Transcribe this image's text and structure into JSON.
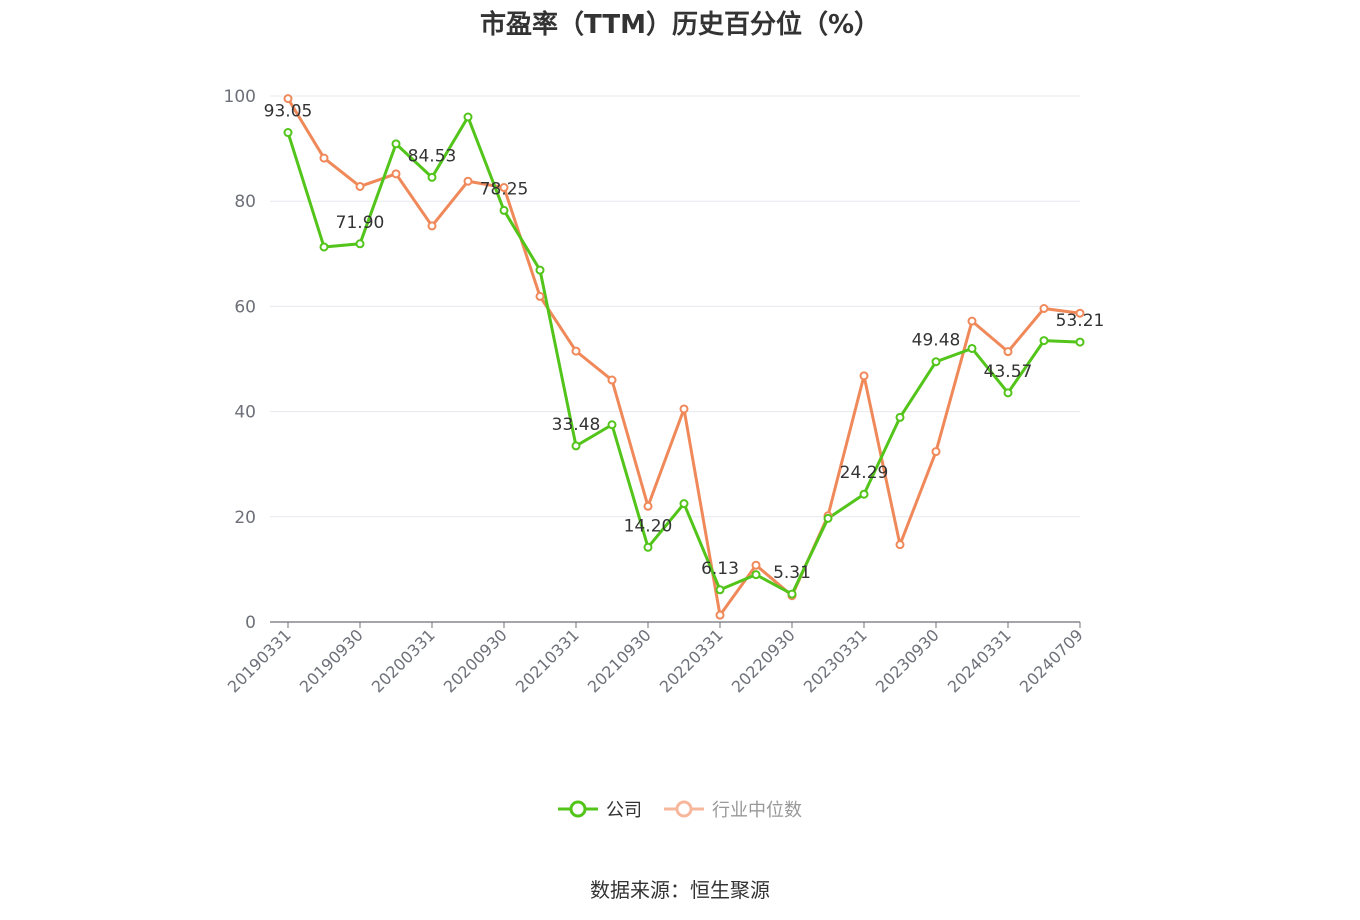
{
  "title": "市盈率（TTM）历史百分位（%）",
  "source": "数据来源：恒生聚源",
  "colors": {
    "company": "#52c41a",
    "industry": "#f0895a",
    "grid": "#e6e8ee",
    "axis": "#6e7079",
    "label": "#333333"
  },
  "legend": {
    "company": "公司",
    "industry": "行业中位数"
  },
  "chart_data": {
    "type": "line",
    "ylim": [
      0,
      100
    ],
    "yticks": [
      0,
      20,
      40,
      60,
      80,
      100
    ],
    "xtick_labels": [
      "20190331",
      "20190930",
      "20200331",
      "20200930",
      "20210331",
      "20210930",
      "20220331",
      "20220930",
      "20230331",
      "20230930",
      "20240331",
      "20240709"
    ],
    "grid": true,
    "legend_position": "bottom-center",
    "x": [
      "20190331",
      "20190630",
      "20190930",
      "20191231",
      "20200331",
      "20200630",
      "20200930",
      "20201231",
      "20210331",
      "20210630",
      "20210930",
      "20211231",
      "20220331",
      "20220630",
      "20220930",
      "20221231",
      "20230331",
      "20230630",
      "20230930",
      "20231231",
      "20240331",
      "20240630",
      "20240709"
    ],
    "series": [
      {
        "name": "公司",
        "values": [
          93.05,
          71.3,
          71.9,
          90.9,
          84.53,
          96.0,
          78.25,
          66.9,
          33.48,
          37.5,
          14.2,
          22.5,
          6.13,
          9.0,
          5.31,
          19.7,
          24.29,
          38.9,
          49.48,
          52.0,
          43.57,
          53.5,
          53.21
        ],
        "labels": [
          "93.05",
          "",
          "71.90",
          "",
          "84.53",
          "",
          "78.25",
          "",
          "33.48",
          "",
          "14.20",
          "",
          "6.13",
          "",
          "5.31",
          "",
          "24.29",
          "",
          "49.48",
          "",
          "43.57",
          "",
          "53.21"
        ]
      },
      {
        "name": "行业中位数",
        "values": [
          99.5,
          88.2,
          82.8,
          85.2,
          75.3,
          83.8,
          82.6,
          61.9,
          51.5,
          46.0,
          22.0,
          40.5,
          1.3,
          10.8,
          5.0,
          20.2,
          46.8,
          14.7,
          32.4,
          57.2,
          51.4,
          59.6,
          58.7
        ]
      }
    ]
  }
}
